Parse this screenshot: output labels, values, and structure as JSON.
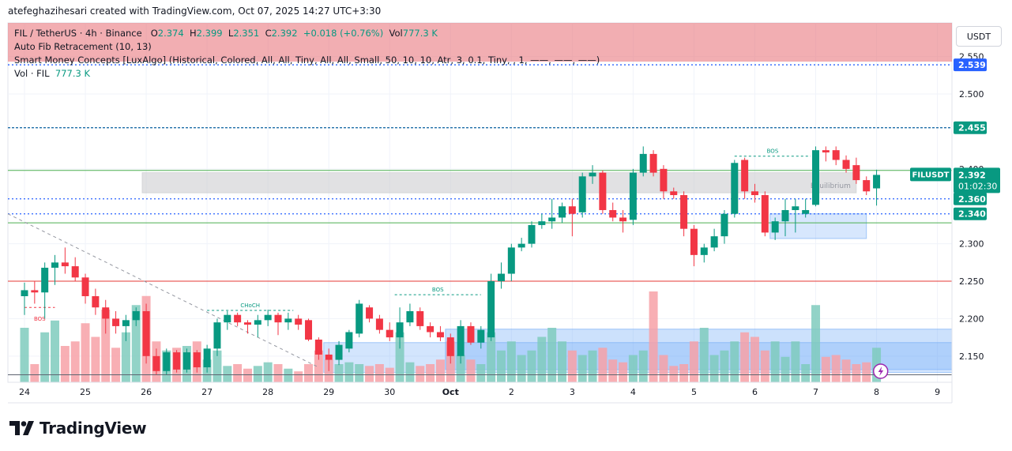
{
  "caption": "atefeghazihesari created with TradingView.com, Oct 07, 2025 14:27 UTC+3:30",
  "brand": "TradingView",
  "currency_button": "USDT",
  "legend": {
    "symbol": "FIL / TetherUS · 4h · Binance",
    "o_label": "O",
    "o": "2.374",
    "h_label": "H",
    "h": "2.399",
    "l_label": "L",
    "l": "2.351",
    "c_label": "C",
    "c": "2.392",
    "change": "+0.018 (+0.76%)",
    "vol_label": "Vol",
    "vol": "777.3 K",
    "fib": "Auto Fib Retracement (10, 13)",
    "smc": "Smart Money Concepts [LuxAlgo] (Historical, Colored, All, All, Tiny, All, All, Small, 50, 10, 10, Atr, 3, 0.1, Tiny, , 1, ——, ——, ——)",
    "vol_indicator_label": "Vol · FIL",
    "vol_indicator_value": "777.3 K"
  },
  "colors": {
    "up": "#089981",
    "down": "#f23645",
    "up_vol": "#7fcbbd",
    "down_vol": "#f7a1a7"
  },
  "chart_data": {
    "type": "candlestick",
    "symbol": "FILUSDT",
    "interval": "4h",
    "ylim": [
      2.115,
      2.595
    ],
    "y_ticks": [
      "2.550",
      "2.500",
      "2.400",
      "2.300",
      "2.250",
      "2.200",
      "2.150"
    ],
    "x_ticks": [
      {
        "label": "24",
        "t": 0
      },
      {
        "label": "25",
        "t": 6
      },
      {
        "label": "26",
        "t": 12
      },
      {
        "label": "27",
        "t": 18
      },
      {
        "label": "28",
        "t": 24
      },
      {
        "label": "29",
        "t": 30
      },
      {
        "label": "30",
        "t": 36
      },
      {
        "label": "Oct",
        "t": 42
      },
      {
        "label": "2",
        "t": 48
      },
      {
        "label": "3",
        "t": 54
      },
      {
        "label": "4",
        "t": 60
      },
      {
        "label": "5",
        "t": 66
      },
      {
        "label": "6",
        "t": 72
      },
      {
        "label": "7",
        "t": 78
      },
      {
        "label": "8",
        "t": 84
      },
      {
        "label": "9",
        "t": 90
      }
    ],
    "price_labels": [
      {
        "value": "2.539",
        "price": 2.539,
        "color": "#2962ff"
      },
      {
        "value": "2.455",
        "price": 2.455,
        "color": "#089981"
      },
      {
        "value": "2.360",
        "price": 2.36,
        "color": "#089981"
      },
      {
        "value": "2.340",
        "price": 2.34,
        "color": "#089981"
      }
    ],
    "last_price": {
      "symbol": "FILUSDT",
      "value": "2.392",
      "countdown": "01:02:30",
      "price": 2.392
    },
    "h_lines": [
      {
        "price": 2.539,
        "color": "#2962ff",
        "style": "dotted"
      },
      {
        "price": 2.455,
        "color": "#1e6ea7",
        "style": "dashed"
      },
      {
        "price": 2.398,
        "color": "#4caf50",
        "style": "solid"
      },
      {
        "price": 2.36,
        "color": "#2962ff",
        "style": "dotted"
      },
      {
        "price": 2.34,
        "color": "#2962ff",
        "style": "dotted"
      },
      {
        "price": 2.328,
        "color": "#4caf50",
        "style": "solid"
      },
      {
        "price": 2.25,
        "color": "#e53935",
        "style": "solid"
      },
      {
        "price": 2.125,
        "color": "#5d6470",
        "style": "solid"
      }
    ],
    "zones": [
      {
        "t0": 11.6,
        "t1": 82,
        "p0": 2.395,
        "p1": 2.368,
        "color": "#c8c9cc",
        "opacity": 0.55,
        "label": "Equilibrium"
      },
      {
        "t0": 73.5,
        "t1": 83,
        "p0": 2.34,
        "p1": 2.307,
        "color": "#6ea8f7",
        "opacity": 0.28,
        "label": ""
      },
      {
        "t0": 41.5,
        "t1": 93,
        "p0": 2.186,
        "p1": 2.132,
        "color": "#6ea8f7",
        "opacity": 0.35,
        "label": ""
      },
      {
        "t0": 29.5,
        "t1": 93,
        "p0": 2.168,
        "p1": 2.128,
        "color": "#6ea8f7",
        "opacity": 0.3,
        "label": ""
      }
    ],
    "structure": [
      {
        "t0": 0,
        "t1": 3,
        "price": 2.215,
        "color": "#f23645",
        "label": "BOS"
      },
      {
        "t0": 18,
        "t1": 26.5,
        "price": 2.211,
        "color": "#089981",
        "label": "CHoCH"
      },
      {
        "t0": 36.5,
        "t1": 45,
        "price": 2.232,
        "color": "#089981",
        "label": "BOS"
      },
      {
        "t0": 70,
        "t1": 77.5,
        "price": 2.417,
        "color": "#089981",
        "label": "BOS"
      }
    ],
    "candles": [
      {
        "o": 2.23,
        "h": 2.248,
        "l": 2.205,
        "c": 2.238
      },
      {
        "o": 2.238,
        "h": 2.25,
        "l": 2.22,
        "c": 2.235
      },
      {
        "o": 2.235,
        "h": 2.275,
        "l": 2.2,
        "c": 2.268
      },
      {
        "o": 2.268,
        "h": 2.285,
        "l": 2.245,
        "c": 2.275
      },
      {
        "o": 2.275,
        "h": 2.295,
        "l": 2.26,
        "c": 2.27
      },
      {
        "o": 2.27,
        "h": 2.282,
        "l": 2.25,
        "c": 2.255
      },
      {
        "o": 2.255,
        "h": 2.26,
        "l": 2.22,
        "c": 2.23
      },
      {
        "o": 2.23,
        "h": 2.24,
        "l": 2.205,
        "c": 2.215
      },
      {
        "o": 2.215,
        "h": 2.225,
        "l": 2.18,
        "c": 2.2
      },
      {
        "o": 2.2,
        "h": 2.21,
        "l": 2.18,
        "c": 2.19
      },
      {
        "o": 2.19,
        "h": 2.205,
        "l": 2.17,
        "c": 2.198
      },
      {
        "o": 2.198,
        "h": 2.215,
        "l": 2.19,
        "c": 2.21
      },
      {
        "o": 2.21,
        "h": 2.22,
        "l": 2.14,
        "c": 2.15
      },
      {
        "o": 2.15,
        "h": 2.16,
        "l": 2.125,
        "c": 2.13
      },
      {
        "o": 2.13,
        "h": 2.16,
        "l": 2.125,
        "c": 2.155
      },
      {
        "o": 2.155,
        "h": 2.158,
        "l": 2.128,
        "c": 2.132
      },
      {
        "o": 2.132,
        "h": 2.16,
        "l": 2.128,
        "c": 2.155
      },
      {
        "o": 2.155,
        "h": 2.158,
        "l": 2.128,
        "c": 2.135
      },
      {
        "o": 2.135,
        "h": 2.165,
        "l": 2.128,
        "c": 2.16
      },
      {
        "o": 2.16,
        "h": 2.2,
        "l": 2.15,
        "c": 2.195
      },
      {
        "o": 2.195,
        "h": 2.21,
        "l": 2.185,
        "c": 2.205
      },
      {
        "o": 2.205,
        "h": 2.208,
        "l": 2.19,
        "c": 2.195
      },
      {
        "o": 2.195,
        "h": 2.198,
        "l": 2.18,
        "c": 2.192
      },
      {
        "o": 2.192,
        "h": 2.205,
        "l": 2.175,
        "c": 2.198
      },
      {
        "o": 2.198,
        "h": 2.212,
        "l": 2.19,
        "c": 2.205
      },
      {
        "o": 2.205,
        "h": 2.208,
        "l": 2.178,
        "c": 2.195
      },
      {
        "o": 2.195,
        "h": 2.208,
        "l": 2.185,
        "c": 2.2
      },
      {
        "o": 2.2,
        "h": 2.205,
        "l": 2.185,
        "c": 2.192
      },
      {
        "o": 2.198,
        "h": 2.2,
        "l": 2.17,
        "c": 2.172
      },
      {
        "o": 2.172,
        "h": 2.175,
        "l": 2.145,
        "c": 2.152
      },
      {
        "o": 2.152,
        "h": 2.16,
        "l": 2.13,
        "c": 2.145
      },
      {
        "o": 2.145,
        "h": 2.17,
        "l": 2.138,
        "c": 2.165
      },
      {
        "o": 2.16,
        "h": 2.185,
        "l": 2.155,
        "c": 2.182
      },
      {
        "o": 2.18,
        "h": 2.225,
        "l": 2.175,
        "c": 2.22
      },
      {
        "o": 2.215,
        "h": 2.218,
        "l": 2.195,
        "c": 2.2
      },
      {
        "o": 2.2,
        "h": 2.205,
        "l": 2.18,
        "c": 2.185
      },
      {
        "o": 2.185,
        "h": 2.195,
        "l": 2.17,
        "c": 2.175
      },
      {
        "o": 2.175,
        "h": 2.215,
        "l": 2.16,
        "c": 2.195
      },
      {
        "o": 2.195,
        "h": 2.22,
        "l": 2.19,
        "c": 2.21
      },
      {
        "o": 2.21,
        "h": 2.215,
        "l": 2.185,
        "c": 2.19
      },
      {
        "o": 2.19,
        "h": 2.195,
        "l": 2.175,
        "c": 2.182
      },
      {
        "o": 2.182,
        "h": 2.19,
        "l": 2.17,
        "c": 2.175
      },
      {
        "o": 2.175,
        "h": 2.18,
        "l": 2.14,
        "c": 2.15
      },
      {
        "o": 2.15,
        "h": 2.198,
        "l": 2.14,
        "c": 2.19
      },
      {
        "o": 2.19,
        "h": 2.195,
        "l": 2.165,
        "c": 2.168
      },
      {
        "o": 2.168,
        "h": 2.19,
        "l": 2.16,
        "c": 2.185
      },
      {
        "o": 2.175,
        "h": 2.26,
        "l": 2.17,
        "c": 2.25
      },
      {
        "o": 2.25,
        "h": 2.275,
        "l": 2.24,
        "c": 2.26
      },
      {
        "o": 2.26,
        "h": 2.3,
        "l": 2.25,
        "c": 2.295
      },
      {
        "o": 2.295,
        "h": 2.308,
        "l": 2.29,
        "c": 2.3
      },
      {
        "o": 2.3,
        "h": 2.33,
        "l": 2.295,
        "c": 2.325
      },
      {
        "o": 2.325,
        "h": 2.34,
        "l": 2.32,
        "c": 2.33
      },
      {
        "o": 2.33,
        "h": 2.36,
        "l": 2.32,
        "c": 2.335
      },
      {
        "o": 2.335,
        "h": 2.355,
        "l": 2.328,
        "c": 2.35
      },
      {
        "o": 2.35,
        "h": 2.36,
        "l": 2.31,
        "c": 2.34
      },
      {
        "o": 2.342,
        "h": 2.395,
        "l": 2.335,
        "c": 2.39
      },
      {
        "o": 2.39,
        "h": 2.405,
        "l": 2.38,
        "c": 2.395
      },
      {
        "o": 2.395,
        "h": 2.398,
        "l": 2.34,
        "c": 2.345
      },
      {
        "o": 2.345,
        "h": 2.355,
        "l": 2.33,
        "c": 2.335
      },
      {
        "o": 2.335,
        "h": 2.345,
        "l": 2.315,
        "c": 2.33
      },
      {
        "o": 2.332,
        "h": 2.4,
        "l": 2.325,
        "c": 2.395
      },
      {
        "o": 2.395,
        "h": 2.43,
        "l": 2.39,
        "c": 2.42
      },
      {
        "o": 2.42,
        "h": 2.425,
        "l": 2.39,
        "c": 2.395
      },
      {
        "o": 2.4,
        "h": 2.405,
        "l": 2.36,
        "c": 2.37
      },
      {
        "o": 2.37,
        "h": 2.375,
        "l": 2.36,
        "c": 2.365
      },
      {
        "o": 2.365,
        "h": 2.37,
        "l": 2.31,
        "c": 2.32
      },
      {
        "o": 2.32,
        "h": 2.325,
        "l": 2.27,
        "c": 2.285
      },
      {
        "o": 2.285,
        "h": 2.3,
        "l": 2.275,
        "c": 2.295
      },
      {
        "o": 2.295,
        "h": 2.32,
        "l": 2.29,
        "c": 2.31
      },
      {
        "o": 2.31,
        "h": 2.345,
        "l": 2.3,
        "c": 2.34
      },
      {
        "o": 2.34,
        "h": 2.412,
        "l": 2.335,
        "c": 2.408
      },
      {
        "o": 2.412,
        "h": 2.415,
        "l": 2.36,
        "c": 2.37
      },
      {
        "o": 2.37,
        "h": 2.38,
        "l": 2.355,
        "c": 2.365
      },
      {
        "o": 2.365,
        "h": 2.37,
        "l": 2.31,
        "c": 2.315
      },
      {
        "o": 2.315,
        "h": 2.335,
        "l": 2.305,
        "c": 2.33
      },
      {
        "o": 2.33,
        "h": 2.36,
        "l": 2.31,
        "c": 2.345
      },
      {
        "o": 2.345,
        "h": 2.36,
        "l": 2.315,
        "c": 2.35
      },
      {
        "o": 2.34,
        "h": 2.36,
        "l": 2.335,
        "c": 2.345
      },
      {
        "o": 2.352,
        "h": 2.43,
        "l": 2.35,
        "c": 2.425
      },
      {
        "o": 2.425,
        "h": 2.43,
        "l": 2.41,
        "c": 2.422
      },
      {
        "o": 2.425,
        "h": 2.43,
        "l": 2.405,
        "c": 2.412
      },
      {
        "o": 2.412,
        "h": 2.418,
        "l": 2.395,
        "c": 2.4
      },
      {
        "o": 2.405,
        "h": 2.415,
        "l": 2.38,
        "c": 2.385
      },
      {
        "o": 2.385,
        "h": 2.39,
        "l": 2.365,
        "c": 2.37
      },
      {
        "o": 2.374,
        "h": 2.399,
        "l": 2.351,
        "c": 2.392
      }
    ],
    "volume": [
      0.6,
      0.2,
      0.55,
      0.68,
      0.4,
      0.45,
      0.65,
      0.5,
      0.8,
      0.38,
      0.55,
      0.85,
      0.95,
      0.45,
      0.35,
      0.38,
      0.4,
      0.45,
      0.25,
      0.35,
      0.18,
      0.2,
      0.15,
      0.18,
      0.22,
      0.2,
      0.15,
      0.12,
      0.2,
      0.35,
      0.25,
      0.2,
      0.22,
      0.2,
      0.18,
      0.2,
      0.16,
      0.55,
      0.22,
      0.18,
      0.2,
      0.25,
      0.45,
      0.3,
      0.25,
      0.2,
      0.55,
      0.35,
      0.45,
      0.3,
      0.35,
      0.5,
      0.6,
      0.45,
      0.35,
      0.3,
      0.35,
      0.38,
      0.25,
      0.22,
      0.3,
      0.35,
      1.0,
      0.3,
      0.18,
      0.2,
      0.45,
      0.6,
      0.3,
      0.35,
      0.45,
      0.55,
      0.5,
      0.35,
      0.45,
      0.28,
      0.45,
      0.2,
      0.85,
      0.28,
      0.3,
      0.25,
      0.2,
      0.22,
      0.38
    ]
  }
}
